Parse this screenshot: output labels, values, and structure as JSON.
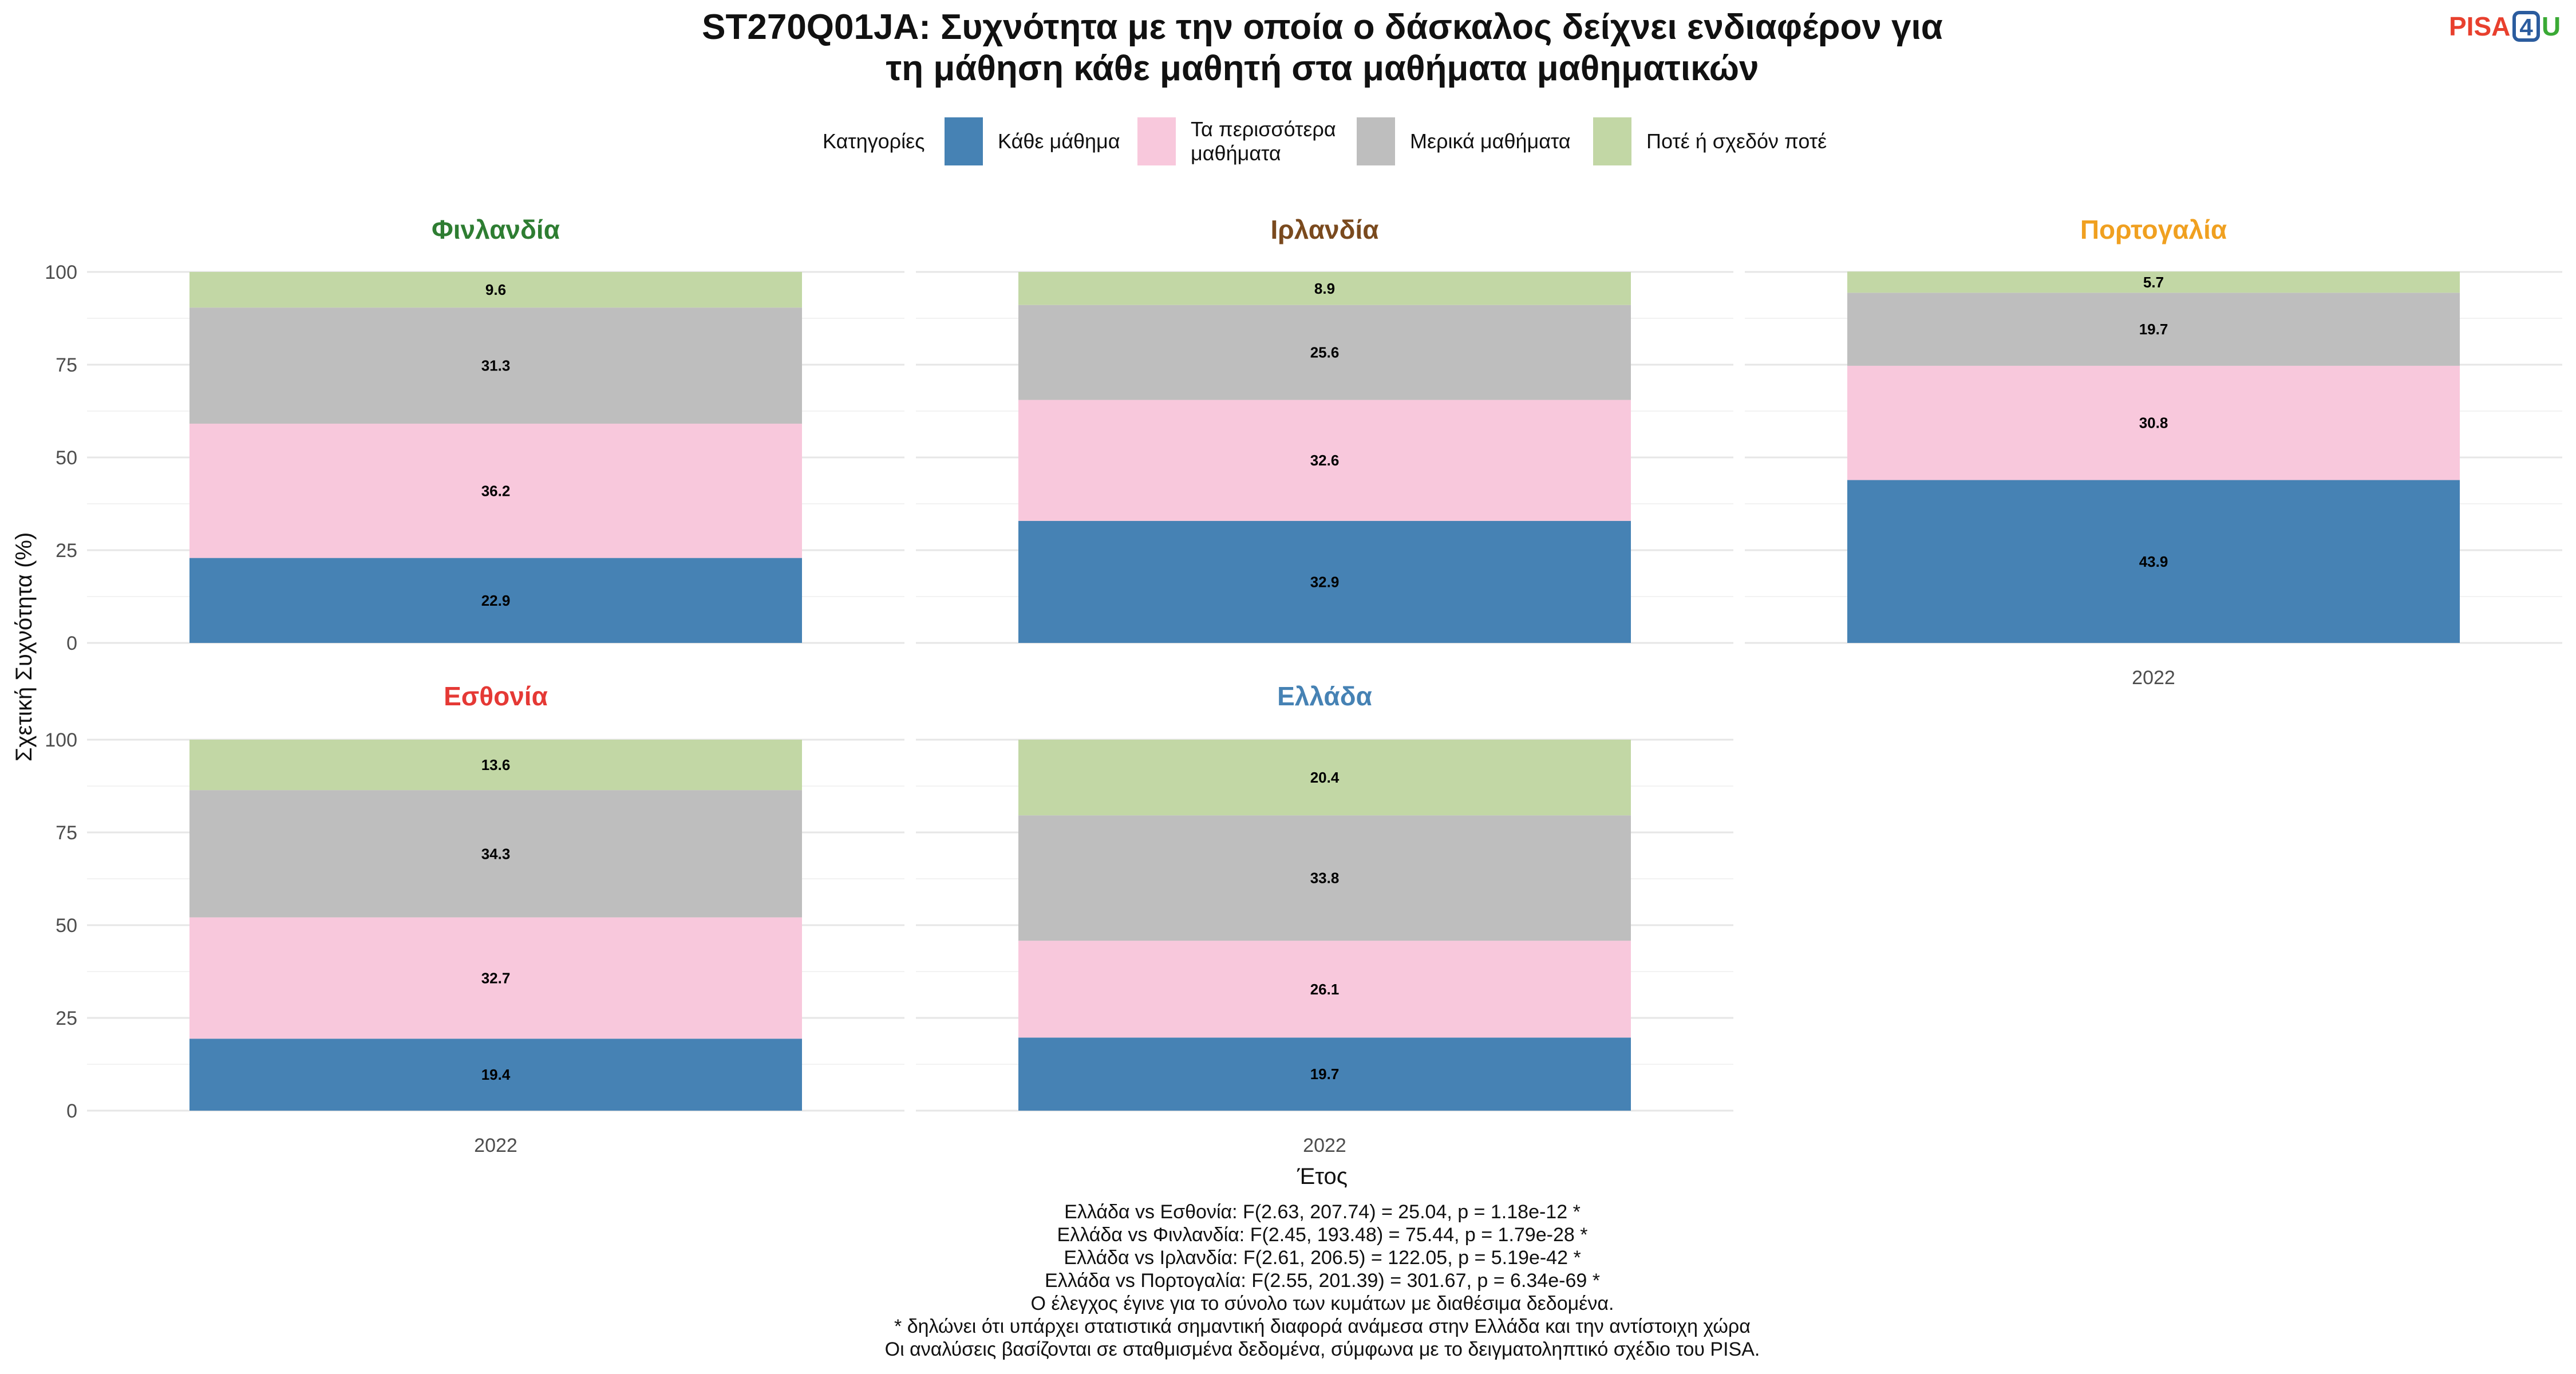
{
  "title_line1": "ST270Q01JA: Συχνότητα με την οποία ο δάσκαλος δείχνει ενδιαφέρον για",
  "title_line2": "τη μάθηση κάθε μαθητή στα μαθήματα μαθηματικών",
  "logo": {
    "pisa": "PISA",
    "four": "4",
    "u": "U",
    "colors": {
      "pisa": "#e8402e",
      "four": "#2b5c9e",
      "u": "#3aaa35"
    }
  },
  "legend": {
    "title": "Κατηγορίες",
    "items": [
      {
        "line1": "Κάθε μάθημα",
        "line2": "",
        "color": "#4682b4"
      },
      {
        "line1": "Τα περισσότερα",
        "line2": "μαθήματα",
        "color": "#f8c8dc"
      },
      {
        "line1": "Μερικά μαθήματα",
        "line2": "",
        "color": "#bebebe"
      },
      {
        "line1": "Ποτέ ή σχεδόν ποτέ",
        "line2": "",
        "color": "#c2d7a5"
      }
    ]
  },
  "y_axis_label": "Σχετική Συχνότητα (%)",
  "x_axis_label": "Έτος",
  "chart_data": {
    "type": "bar",
    "stacked": true,
    "ylim": [
      0,
      100
    ],
    "yticks": [
      0,
      25,
      50,
      75,
      100
    ],
    "categories": [
      "2022"
    ],
    "series_order": [
      "Κάθε μάθημα",
      "Τα περισσότερα μαθήματα",
      "Μερικά μαθήματα",
      "Ποτέ ή σχεδόν ποτέ"
    ],
    "facets": [
      {
        "name": "Φινλανδία",
        "color": "#2e7d32",
        "values": [
          22.9,
          36.2,
          31.3,
          9.6
        ],
        "labels": [
          "22.9",
          "36.2",
          "31.3",
          "9.6"
        ]
      },
      {
        "name": "Ιρλανδία",
        "color": "#7a4a1e",
        "values": [
          32.9,
          32.6,
          25.6,
          8.9
        ],
        "labels": [
          "32.9",
          "32.6",
          "25.6",
          "8.9"
        ]
      },
      {
        "name": "Πορτογαλία",
        "color": "#f0a020",
        "values": [
          43.9,
          30.8,
          19.7,
          5.7
        ],
        "labels": [
          "43.9",
          "30.8",
          "19.7",
          "5.7"
        ]
      },
      {
        "name": "Εσθονία",
        "color": "#e53935",
        "values": [
          19.4,
          32.7,
          34.3,
          13.6
        ],
        "labels": [
          "19.4",
          "32.7",
          "34.3",
          "13.6"
        ]
      },
      {
        "name": "Ελλάδα",
        "color": "#4682b4",
        "values": [
          19.7,
          26.1,
          33.8,
          20.4
        ],
        "labels": [
          "19.7",
          "26.1",
          "33.8",
          "20.4"
        ]
      }
    ]
  },
  "footnotes": [
    "Ελλάδα vs Εσθονία: F(2.63, 207.74) = 25.04, p = 1.18e-12 *",
    "Ελλάδα vs Φινλανδία: F(2.45, 193.48) = 75.44, p = 1.79e-28 *",
    "Ελλάδα vs Ιρλανδία: F(2.61, 206.5) = 122.05, p = 5.19e-42 *",
    "Ελλάδα vs Πορτογαλία: F(2.55, 201.39) = 301.67, p = 6.34e-69 *",
    "Ο έλεγχος έγινε για το σύνολο των κυμάτων με διαθέσιμα δεδομένα.",
    "* δηλώνει ότι υπάρχει στατιστικά σημαντική διαφορά ανάμεσα στην Ελλάδα και την αντίστοιχη χώρα",
    "Οι αναλύσεις βασίζονται σε σταθμισμένα δεδομένα, σύμφωνα με το δειγματοληπτικό σχέδιο του PISA."
  ]
}
